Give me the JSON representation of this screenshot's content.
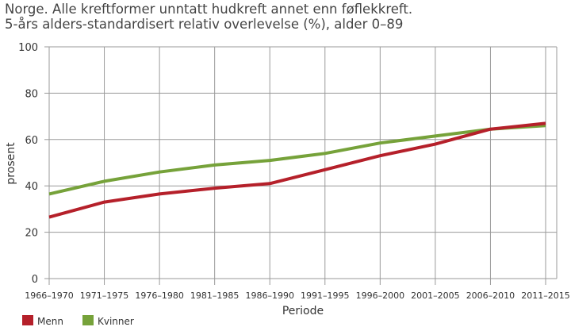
{
  "chart_data": {
    "type": "line",
    "title": "Norge. Alle kreftformer unntatt hudkreft annet enn føflekkreft.",
    "subtitle": "5-års alders-standardisert relativ overlevelse (%), alder 0–89",
    "xlabel": "Periode",
    "ylabel": "prosent",
    "categories": [
      "1966–1970",
      "1971–1975",
      "1976–1980",
      "1981–1985",
      "1986–1990",
      "1991–1995",
      "1996–2000",
      "2001–2005",
      "2006–2010",
      "2011–2015"
    ],
    "ylim": [
      0,
      100
    ],
    "yticks": [
      0,
      20,
      40,
      60,
      80,
      100
    ],
    "grid": true,
    "legend_position": "bottom-left",
    "series": [
      {
        "name": "Menn",
        "color": "#b5202a",
        "values": [
          26.5,
          33,
          36.5,
          39,
          41,
          47,
          53,
          58,
          64.5,
          67
        ]
      },
      {
        "name": "Kvinner",
        "color": "#76a23a",
        "values": [
          36.5,
          42,
          46,
          49,
          51,
          54,
          58.5,
          61.5,
          64.5,
          66
        ]
      }
    ]
  }
}
